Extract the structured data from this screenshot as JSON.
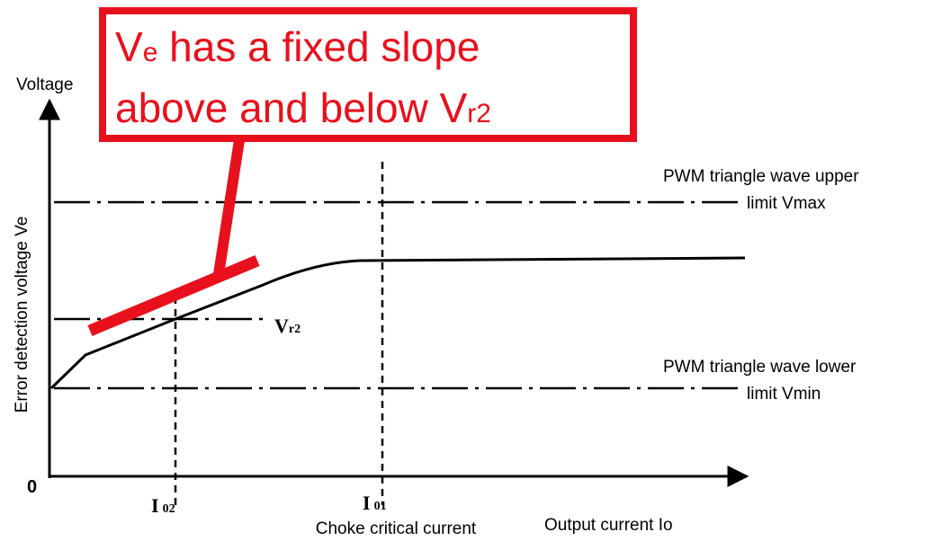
{
  "axes": {
    "y_label": "Voltage",
    "y_title": "Error detection voltage Ve",
    "origin": "0",
    "x_title": "Output current Io"
  },
  "markers": {
    "i02": {
      "main": "I",
      "sub": "02"
    },
    "i01": {
      "main": "I",
      "sub": "01"
    },
    "i01_caption": "Choke critical current",
    "vr2": {
      "main": "V",
      "sub": "r2"
    }
  },
  "limits": {
    "upper": [
      "PWM triangle wave upper",
      "limit Vmax"
    ],
    "lower": [
      "PWM triangle wave lower",
      "limit Vmin"
    ]
  },
  "callout": {
    "line1": [
      "V",
      "e",
      " has a fixed slope"
    ],
    "line2": [
      "above and below V",
      "r2"
    ]
  }
}
